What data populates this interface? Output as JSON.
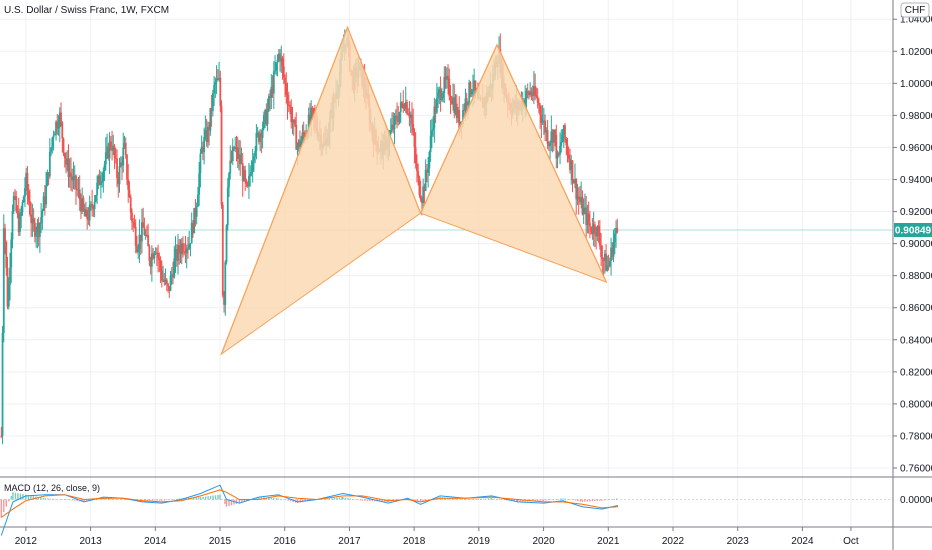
{
  "header": {
    "title": "U.S. Dollar / Swiss Franc, 1W, FXCM",
    "currency": "CHF"
  },
  "colors": {
    "up": "#26a69a",
    "down": "#ef5350",
    "pattern_fill": "#fbd9b3",
    "pattern_stroke": "#f7a35c",
    "price_tag": "#26a69a",
    "macd_line": "#2196f3",
    "signal_line": "#ff6d00",
    "grid": "#eef0f3"
  },
  "macd": {
    "label": "MACD (12, 26, close, 9)",
    "zero_label": "0.00000"
  },
  "chart_data": {
    "type": "candlestick",
    "symbol": "USD/CHF",
    "timeframe": "1W",
    "last_price": "0.90849",
    "y_ticks": [
      "0.76000",
      "0.78000",
      "0.80000",
      "0.82000",
      "0.84000",
      "0.86000",
      "0.88000",
      "0.90000",
      "0.92000",
      "0.94000",
      "0.96000",
      "0.98000",
      "1.00000",
      "1.02000",
      "1.04000"
    ],
    "ylim": [
      0.755,
      1.052
    ],
    "x_ticks": [
      "2012",
      "2013",
      "2014",
      "2015",
      "2016",
      "2017",
      "2018",
      "2019",
      "2020",
      "2021",
      "2022",
      "2023",
      "2024",
      "Oct"
    ],
    "xlim": [
      2011.6,
      2025.4
    ],
    "x_tick_positions": [
      2012,
      2013,
      2014,
      2015,
      2016,
      2017,
      2018,
      2019,
      2020,
      2021,
      2022,
      2023,
      2024,
      2024.75
    ],
    "price_path": [
      [
        2011.62,
        0.78
      ],
      [
        2011.66,
        0.92
      ],
      [
        2011.72,
        0.86
      ],
      [
        2011.8,
        0.93
      ],
      [
        2011.9,
        0.91
      ],
      [
        2012.0,
        0.94
      ],
      [
        2012.1,
        0.91
      ],
      [
        2012.2,
        0.91
      ],
      [
        2012.3,
        0.93
      ],
      [
        2012.42,
        0.97
      ],
      [
        2012.52,
        0.98
      ],
      [
        2012.62,
        0.95
      ],
      [
        2012.72,
        0.94
      ],
      [
        2012.82,
        0.93
      ],
      [
        2012.92,
        0.915
      ],
      [
        2013.0,
        0.92
      ],
      [
        2013.1,
        0.935
      ],
      [
        2013.22,
        0.95
      ],
      [
        2013.32,
        0.965
      ],
      [
        2013.42,
        0.94
      ],
      [
        2013.52,
        0.96
      ],
      [
        2013.62,
        0.92
      ],
      [
        2013.72,
        0.9
      ],
      [
        2013.82,
        0.91
      ],
      [
        2013.92,
        0.89
      ],
      [
        2014.0,
        0.9
      ],
      [
        2014.1,
        0.88
      ],
      [
        2014.2,
        0.87
      ],
      [
        2014.3,
        0.89
      ],
      [
        2014.42,
        0.9
      ],
      [
        2014.52,
        0.9
      ],
      [
        2014.62,
        0.92
      ],
      [
        2014.72,
        0.96
      ],
      [
        2014.82,
        0.97
      ],
      [
        2014.92,
        1.0
      ],
      [
        2015.0,
        1.0
      ],
      [
        2015.05,
        0.85
      ],
      [
        2015.12,
        0.94
      ],
      [
        2015.22,
        0.96
      ],
      [
        2015.32,
        0.95
      ],
      [
        2015.42,
        0.93
      ],
      [
        2015.52,
        0.96
      ],
      [
        2015.62,
        0.97
      ],
      [
        2015.72,
        0.98
      ],
      [
        2015.82,
        1.0
      ],
      [
        2015.92,
        1.02
      ],
      [
        2016.0,
        1.0
      ],
      [
        2016.1,
        0.98
      ],
      [
        2016.2,
        0.96
      ],
      [
        2016.32,
        0.97
      ],
      [
        2016.42,
        0.98
      ],
      [
        2016.52,
        0.97
      ],
      [
        2016.62,
        0.96
      ],
      [
        2016.72,
        0.98
      ],
      [
        2016.82,
        1.0
      ],
      [
        2016.95,
        1.03
      ],
      [
        2017.05,
        1.0
      ],
      [
        2017.15,
        1.01
      ],
      [
        2017.25,
        0.995
      ],
      [
        2017.35,
        0.97
      ],
      [
        2017.45,
        0.96
      ],
      [
        2017.55,
        0.96
      ],
      [
        2017.65,
        0.97
      ],
      [
        2017.75,
        0.98
      ],
      [
        2017.85,
        0.99
      ],
      [
        2017.95,
        0.98
      ],
      [
        2018.05,
        0.94
      ],
      [
        2018.12,
        0.93
      ],
      [
        2018.2,
        0.945
      ],
      [
        2018.3,
        0.98
      ],
      [
        2018.4,
        0.995
      ],
      [
        2018.5,
        1.0
      ],
      [
        2018.6,
        0.99
      ],
      [
        2018.7,
        0.975
      ],
      [
        2018.8,
        0.99
      ],
      [
        2018.9,
        1.0
      ],
      [
        2019.0,
        0.985
      ],
      [
        2019.1,
        0.99
      ],
      [
        2019.2,
        1.0
      ],
      [
        2019.3,
        1.02
      ],
      [
        2019.4,
        0.995
      ],
      [
        2019.5,
        0.985
      ],
      [
        2019.6,
        0.985
      ],
      [
        2019.7,
        0.99
      ],
      [
        2019.8,
        0.995
      ],
      [
        2019.9,
        0.99
      ],
      [
        2020.0,
        0.975
      ],
      [
        2020.08,
        0.965
      ],
      [
        2020.16,
        0.97
      ],
      [
        2020.22,
        0.95
      ],
      [
        2020.3,
        0.97
      ],
      [
        2020.42,
        0.95
      ],
      [
        2020.52,
        0.93
      ],
      [
        2020.62,
        0.92
      ],
      [
        2020.72,
        0.91
      ],
      [
        2020.82,
        0.91
      ],
      [
        2020.92,
        0.89
      ],
      [
        2021.0,
        0.885
      ],
      [
        2021.1,
        0.905
      ],
      [
        2021.15,
        0.908
      ]
    ],
    "pattern": {
      "points": [
        [
          2015.02,
          0.831
        ],
        [
          2016.97,
          1.035
        ],
        [
          2018.1,
          0.919
        ],
        [
          2019.28,
          1.024
        ],
        [
          2020.97,
          0.876
        ]
      ]
    },
    "macd_series": [
      [
        2011.62,
        -0.03,
        -0.015
      ],
      [
        2011.8,
        -0.002,
        -0.008
      ],
      [
        2012.0,
        0.003,
        -0.001
      ],
      [
        2012.3,
        0.004,
        0.003
      ],
      [
        2012.6,
        0.004,
        0.004
      ],
      [
        2012.9,
        -0.002,
        0.0
      ],
      [
        2013.2,
        0.002,
        0.001
      ],
      [
        2013.5,
        0.001,
        0.001
      ],
      [
        2013.8,
        -0.002,
        -0.001
      ],
      [
        2014.1,
        -0.003,
        -0.002
      ],
      [
        2014.4,
        0.0,
        -0.001
      ],
      [
        2014.7,
        0.005,
        0.003
      ],
      [
        2015.0,
        0.012,
        0.008
      ],
      [
        2015.1,
        0.0,
        0.006
      ],
      [
        2015.3,
        -0.003,
        0.0
      ],
      [
        2015.6,
        0.002,
        0.0
      ],
      [
        2015.9,
        0.004,
        0.003
      ],
      [
        2016.2,
        -0.002,
        0.001
      ],
      [
        2016.5,
        0.0,
        0.0
      ],
      [
        2016.9,
        0.005,
        0.003
      ],
      [
        2017.2,
        0.002,
        0.003
      ],
      [
        2017.6,
        -0.003,
        -0.001
      ],
      [
        2017.9,
        0.001,
        0.0
      ],
      [
        2018.1,
        -0.004,
        -0.002
      ],
      [
        2018.4,
        0.003,
        0.001
      ],
      [
        2018.8,
        0.001,
        0.001
      ],
      [
        2019.2,
        0.003,
        0.002
      ],
      [
        2019.6,
        -0.002,
        0.0
      ],
      [
        2020.0,
        -0.003,
        -0.002
      ],
      [
        2020.3,
        -0.001,
        -0.002
      ],
      [
        2020.6,
        -0.006,
        -0.004
      ],
      [
        2020.9,
        -0.008,
        -0.007
      ],
      [
        2021.15,
        -0.005,
        -0.006
      ]
    ]
  }
}
